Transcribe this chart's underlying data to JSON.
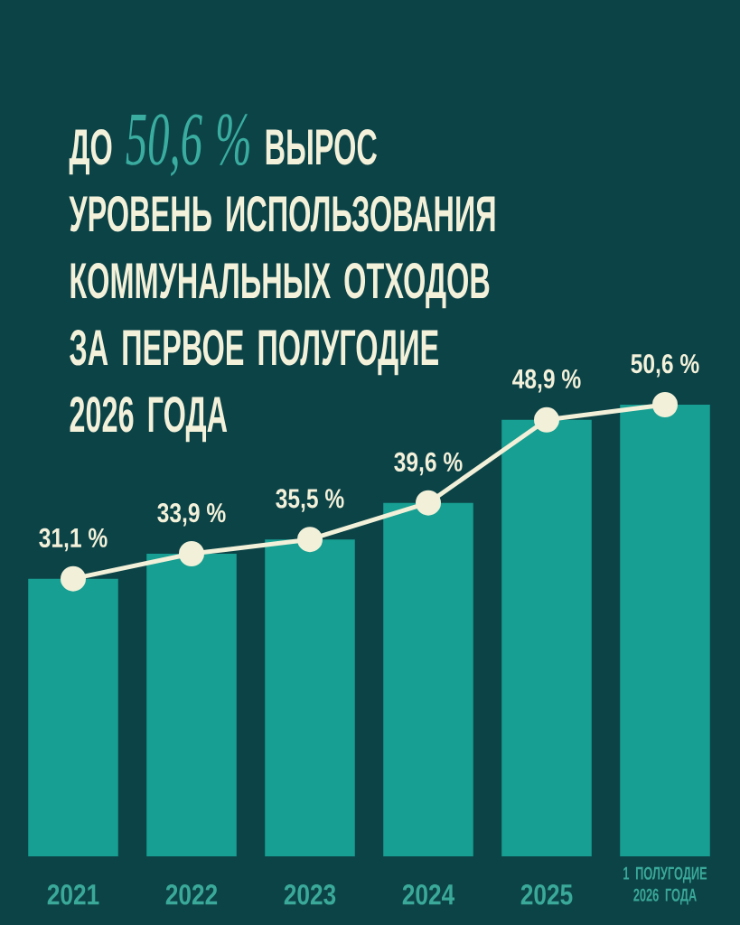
{
  "chart_data": {
    "type": "bar",
    "title": "ДО *50,6 %* ВЫРОС УРОВЕНЬ ИСПОЛЬЗОВАНИЯ КОММУНАЛЬНЫХ ОТХОДОВ ЗА ПЕРВОЕ ПОЛУГОДИЕ 2026 ГОДА",
    "categories": [
      "2021",
      "2022",
      "2023",
      "2024",
      "2025",
      "1 ПОЛУГОДИЕ 2026 ГОДА"
    ],
    "series": [
      {
        "color": "#169f92",
        "values": [
          31.1,
          33.9,
          35.5,
          39.6,
          48.9,
          50.6
        ]
      },
      {
        "type": "line",
        "color": "#f2f0d8",
        "marker": "circle",
        "values": [
          31.1,
          33.9,
          35.5,
          39.6,
          48.9,
          50.6
        ],
        "value_labels": [
          "31,1 %",
          "33,9 %",
          "35,5 %",
          "39,6 %",
          "48,9 %",
          "50,6 %"
        ]
      }
    ],
    "tick_labels": "x"
  }
}
